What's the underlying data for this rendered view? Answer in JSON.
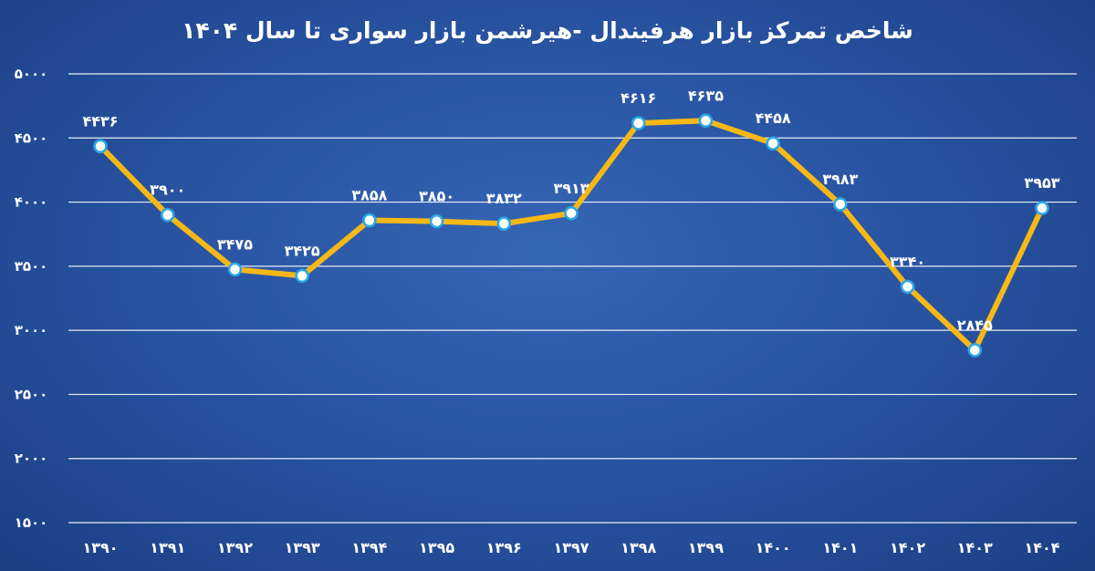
{
  "chart_data": {
    "type": "line",
    "title": "شاخص تمرکز بازار هرفیندال -هیرشمن بازار سواری تا سال ۱۴۰۴",
    "xlabel": "",
    "ylabel": "",
    "categories": [
      "۱۳۹۰",
      "۱۳۹۱",
      "۱۳۹۲",
      "۱۳۹۳",
      "۱۳۹۴",
      "۱۳۹۵",
      "۱۳۹۶",
      "۱۳۹۷",
      "۱۳۹۸",
      "۱۳۹۹",
      "۱۴۰۰",
      "۱۴۰۱",
      "۱۴۰۲",
      "۱۴۰۳",
      "۱۴۰۴"
    ],
    "series": [
      {
        "values": [
          4436,
          3900,
          3475,
          3425,
          3858,
          3850,
          3832,
          3913,
          4616,
          4635,
          4458,
          3983,
          3340,
          2845,
          3953
        ],
        "labels": [
          "۴۴۳۶",
          "۳۹۰۰",
          "۳۴۷۵",
          "۳۴۲۵",
          "۳۸۵۸",
          "۳۸۵۰",
          "۳۸۳۲",
          "۳۹۱۳",
          "۴۶۱۶",
          "۴۶۳۵",
          "۴۴۵۸",
          "۳۹۸۳",
          "۳۳۴۰",
          "۲۸۴۵",
          "۳۹۵۳"
        ]
      }
    ],
    "ylim": [
      1500,
      5000
    ],
    "yticks": [
      1500,
      2000,
      2500,
      3000,
      3500,
      4000,
      4500,
      5000
    ],
    "ytick_labels": [
      "۱۵۰۰",
      "۲۰۰۰",
      "۲۵۰۰",
      "۳۰۰۰",
      "۳۵۰۰",
      "۴۰۰۰",
      "۴۵۰۰",
      "۵۰۰۰"
    ],
    "grid": true,
    "legend": "none",
    "colors": {
      "line": "#f6b817",
      "marker_fill": "#ffffff",
      "marker_stroke": "#2ba7e8",
      "text": "#ffffff",
      "grid": "#ffffff",
      "background": "#2955a3"
    }
  }
}
